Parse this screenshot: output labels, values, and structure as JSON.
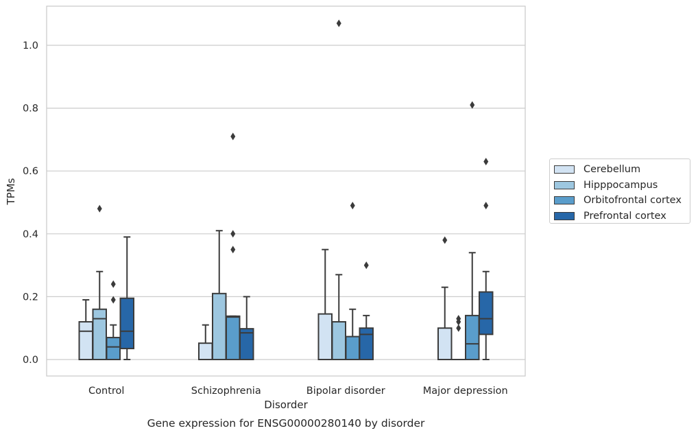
{
  "chart_data": {
    "type": "box",
    "title": "Gene expression for ENSG00000280140 by disorder",
    "xlabel": "Disorder",
    "ylabel": "TPMs",
    "ylim": [
      -0.05,
      1.13
    ],
    "yticks": [
      "0.0",
      "0.2",
      "0.4",
      "0.6",
      "0.8",
      "1.0"
    ],
    "grid": "horizontal",
    "legend_position": "right",
    "categories": [
      "Control",
      "Schizophrenia",
      "Bipolar disorder",
      "Major depression"
    ],
    "series": [
      {
        "name": "Cerebellum",
        "color": "#d2e3f3",
        "boxes": [
          {
            "whislo": 0.0,
            "q1": 0.0,
            "med": 0.09,
            "q3": 0.12,
            "whishi": 0.19,
            "fliers": []
          },
          {
            "whislo": 0.0,
            "q1": 0.0,
            "med": 0.0,
            "q3": 0.052,
            "whishi": 0.11,
            "fliers": []
          },
          {
            "whislo": 0.0,
            "q1": 0.0,
            "med": 0.0,
            "q3": 0.145,
            "whishi": 0.35,
            "fliers": []
          },
          {
            "whislo": 0.0,
            "q1": 0.0,
            "med": 0.0,
            "q3": 0.1,
            "whishi": 0.23,
            "fliers": [
              0.38
            ]
          }
        ]
      },
      {
        "name": "Hipppocampus",
        "color": "#9dc7e0",
        "boxes": [
          {
            "whislo": 0.0,
            "q1": 0.0,
            "med": 0.13,
            "q3": 0.16,
            "whishi": 0.28,
            "fliers": [
              0.48
            ]
          },
          {
            "whislo": 0.0,
            "q1": 0.0,
            "med": 0.0,
            "q3": 0.21,
            "whishi": 0.41,
            "fliers": []
          },
          {
            "whislo": 0.0,
            "q1": 0.0,
            "med": 0.0,
            "q3": 0.12,
            "whishi": 0.27,
            "fliers": [
              1.07
            ]
          },
          {
            "whislo": 0.0,
            "q1": 0.0,
            "med": 0.0,
            "q3": 0.0,
            "whishi": 0.0,
            "fliers": [
              0.1,
              0.12,
              0.13
            ]
          }
        ]
      },
      {
        "name": "Orbitofrontal cortex",
        "color": "#5a9dcb",
        "boxes": [
          {
            "whislo": 0.0,
            "q1": 0.0,
            "med": 0.04,
            "q3": 0.07,
            "whishi": 0.11,
            "fliers": [
              0.19,
              0.24
            ]
          },
          {
            "whislo": 0.0,
            "q1": 0.0,
            "med": 0.135,
            "q3": 0.138,
            "whishi": 0.138,
            "fliers": [
              0.35,
              0.4,
              0.71
            ]
          },
          {
            "whislo": 0.0,
            "q1": 0.0,
            "med": 0.0,
            "q3": 0.073,
            "whishi": 0.16,
            "fliers": [
              0.49
            ]
          },
          {
            "whislo": 0.0,
            "q1": 0.0,
            "med": 0.05,
            "q3": 0.14,
            "whishi": 0.34,
            "fliers": [
              0.81
            ]
          }
        ]
      },
      {
        "name": "Prefrontal cortex",
        "color": "#2767a8",
        "boxes": [
          {
            "whislo": 0.0,
            "q1": 0.035,
            "med": 0.09,
            "q3": 0.195,
            "whishi": 0.39,
            "fliers": []
          },
          {
            "whislo": 0.0,
            "q1": 0.0,
            "med": 0.085,
            "q3": 0.098,
            "whishi": 0.2,
            "fliers": []
          },
          {
            "whislo": 0.0,
            "q1": 0.0,
            "med": 0.08,
            "q3": 0.1,
            "whishi": 0.14,
            "fliers": [
              0.3
            ]
          },
          {
            "whislo": 0.0,
            "q1": 0.08,
            "med": 0.13,
            "q3": 0.215,
            "whishi": 0.28,
            "fliers": [
              0.49,
              0.63
            ]
          }
        ]
      }
    ]
  }
}
